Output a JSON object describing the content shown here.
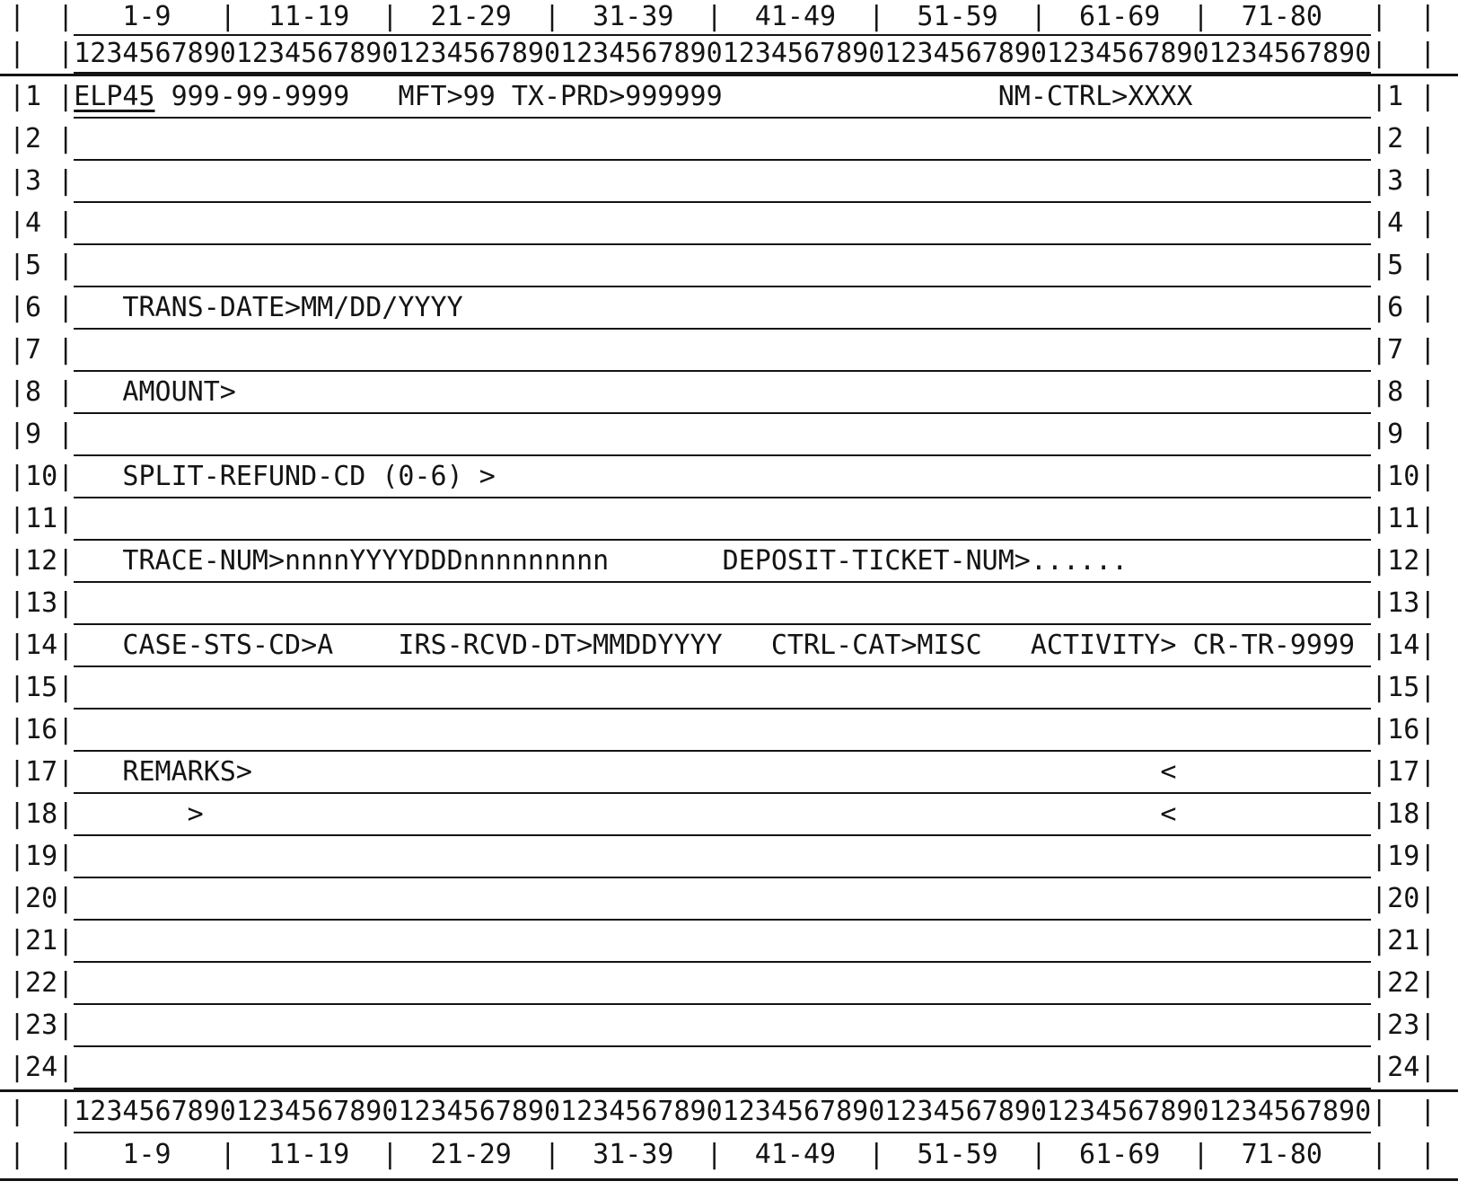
{
  "screen": {
    "column_ranges": [
      "1-9",
      "11-19",
      "21-29",
      "31-39",
      "41-49",
      "51-59",
      "61-69",
      "71-80"
    ],
    "header_ranges_line": "   1-9   |  11-19  |  21-29  |  31-39  |  41-49  |  51-59  |  61-69  |  71-80   ",
    "ruler_line": "12345678901234567890123456789012345678901234567890123456789012345678901234567890",
    "fields": {
      "command_code": "ELP45",
      "tin_mask": "999-99-9999",
      "mft_field": "MFT>99",
      "tax_period_field": "TX-PRD>999999",
      "name_control_field": "NM-CTRL>XXXX",
      "trans_date_field": "TRANS-DATE>MM/DD/YYYY",
      "amount_field": "AMOUNT>",
      "split_refund_field": "SPLIT-REFUND-CD (0-6) >",
      "trace_num_field": "TRACE-NUM>nnnnYYYYDDDnnnnnnnnn",
      "deposit_ticket_field": "DEPOSIT-TICKET-NUM>......",
      "case_status_field": "CASE-STS-CD>A",
      "irs_received_date_field": "IRS-RCVD-DT>MMDDYYYY",
      "control_category_field": "CTRL-CAT>MISC",
      "activity_field": "ACTIVITY>",
      "activity_value": "CR-TR-9999",
      "remarks_field": "REMARKS>",
      "remarks_close_char": "<",
      "remarks_cont_char": ">"
    },
    "rows": [
      {
        "num": "1",
        "prefix": "ELP45",
        "content": " 999-99-9999   MFT>99 TX-PRD>999999                 NM-CTRL>XXXX           "
      },
      {
        "num": "2",
        "content": ""
      },
      {
        "num": "3",
        "content": ""
      },
      {
        "num": "4",
        "content": ""
      },
      {
        "num": "5",
        "content": ""
      },
      {
        "num": "6",
        "content": "   TRANS-DATE>MM/DD/YYYY                                                        "
      },
      {
        "num": "7",
        "content": ""
      },
      {
        "num": "8",
        "content": "   AMOUNT>                                                                      "
      },
      {
        "num": "9",
        "content": ""
      },
      {
        "num": "10",
        "content": "   SPLIT-REFUND-CD (0-6) >                                                      "
      },
      {
        "num": "11",
        "content": ""
      },
      {
        "num": "12",
        "content": "   TRACE-NUM>nnnnYYYYDDDnnnnnnnnn       DEPOSIT-TICKET-NUM>......               "
      },
      {
        "num": "13",
        "content": ""
      },
      {
        "num": "14",
        "content": "   CASE-STS-CD>A    IRS-RCVD-DT>MMDDYYYY   CTRL-CAT>MISC   ACTIVITY> CR-TR-9999 "
      },
      {
        "num": "15",
        "content": ""
      },
      {
        "num": "16",
        "content": ""
      },
      {
        "num": "17",
        "content": "   REMARKS>                                                        <            "
      },
      {
        "num": "18",
        "content": "       >                                                           <            "
      },
      {
        "num": "19",
        "content": ""
      },
      {
        "num": "20",
        "content": ""
      },
      {
        "num": "21",
        "content": ""
      },
      {
        "num": "22",
        "content": ""
      },
      {
        "num": "23",
        "content": ""
      },
      {
        "num": "24",
        "content": ""
      }
    ]
  }
}
